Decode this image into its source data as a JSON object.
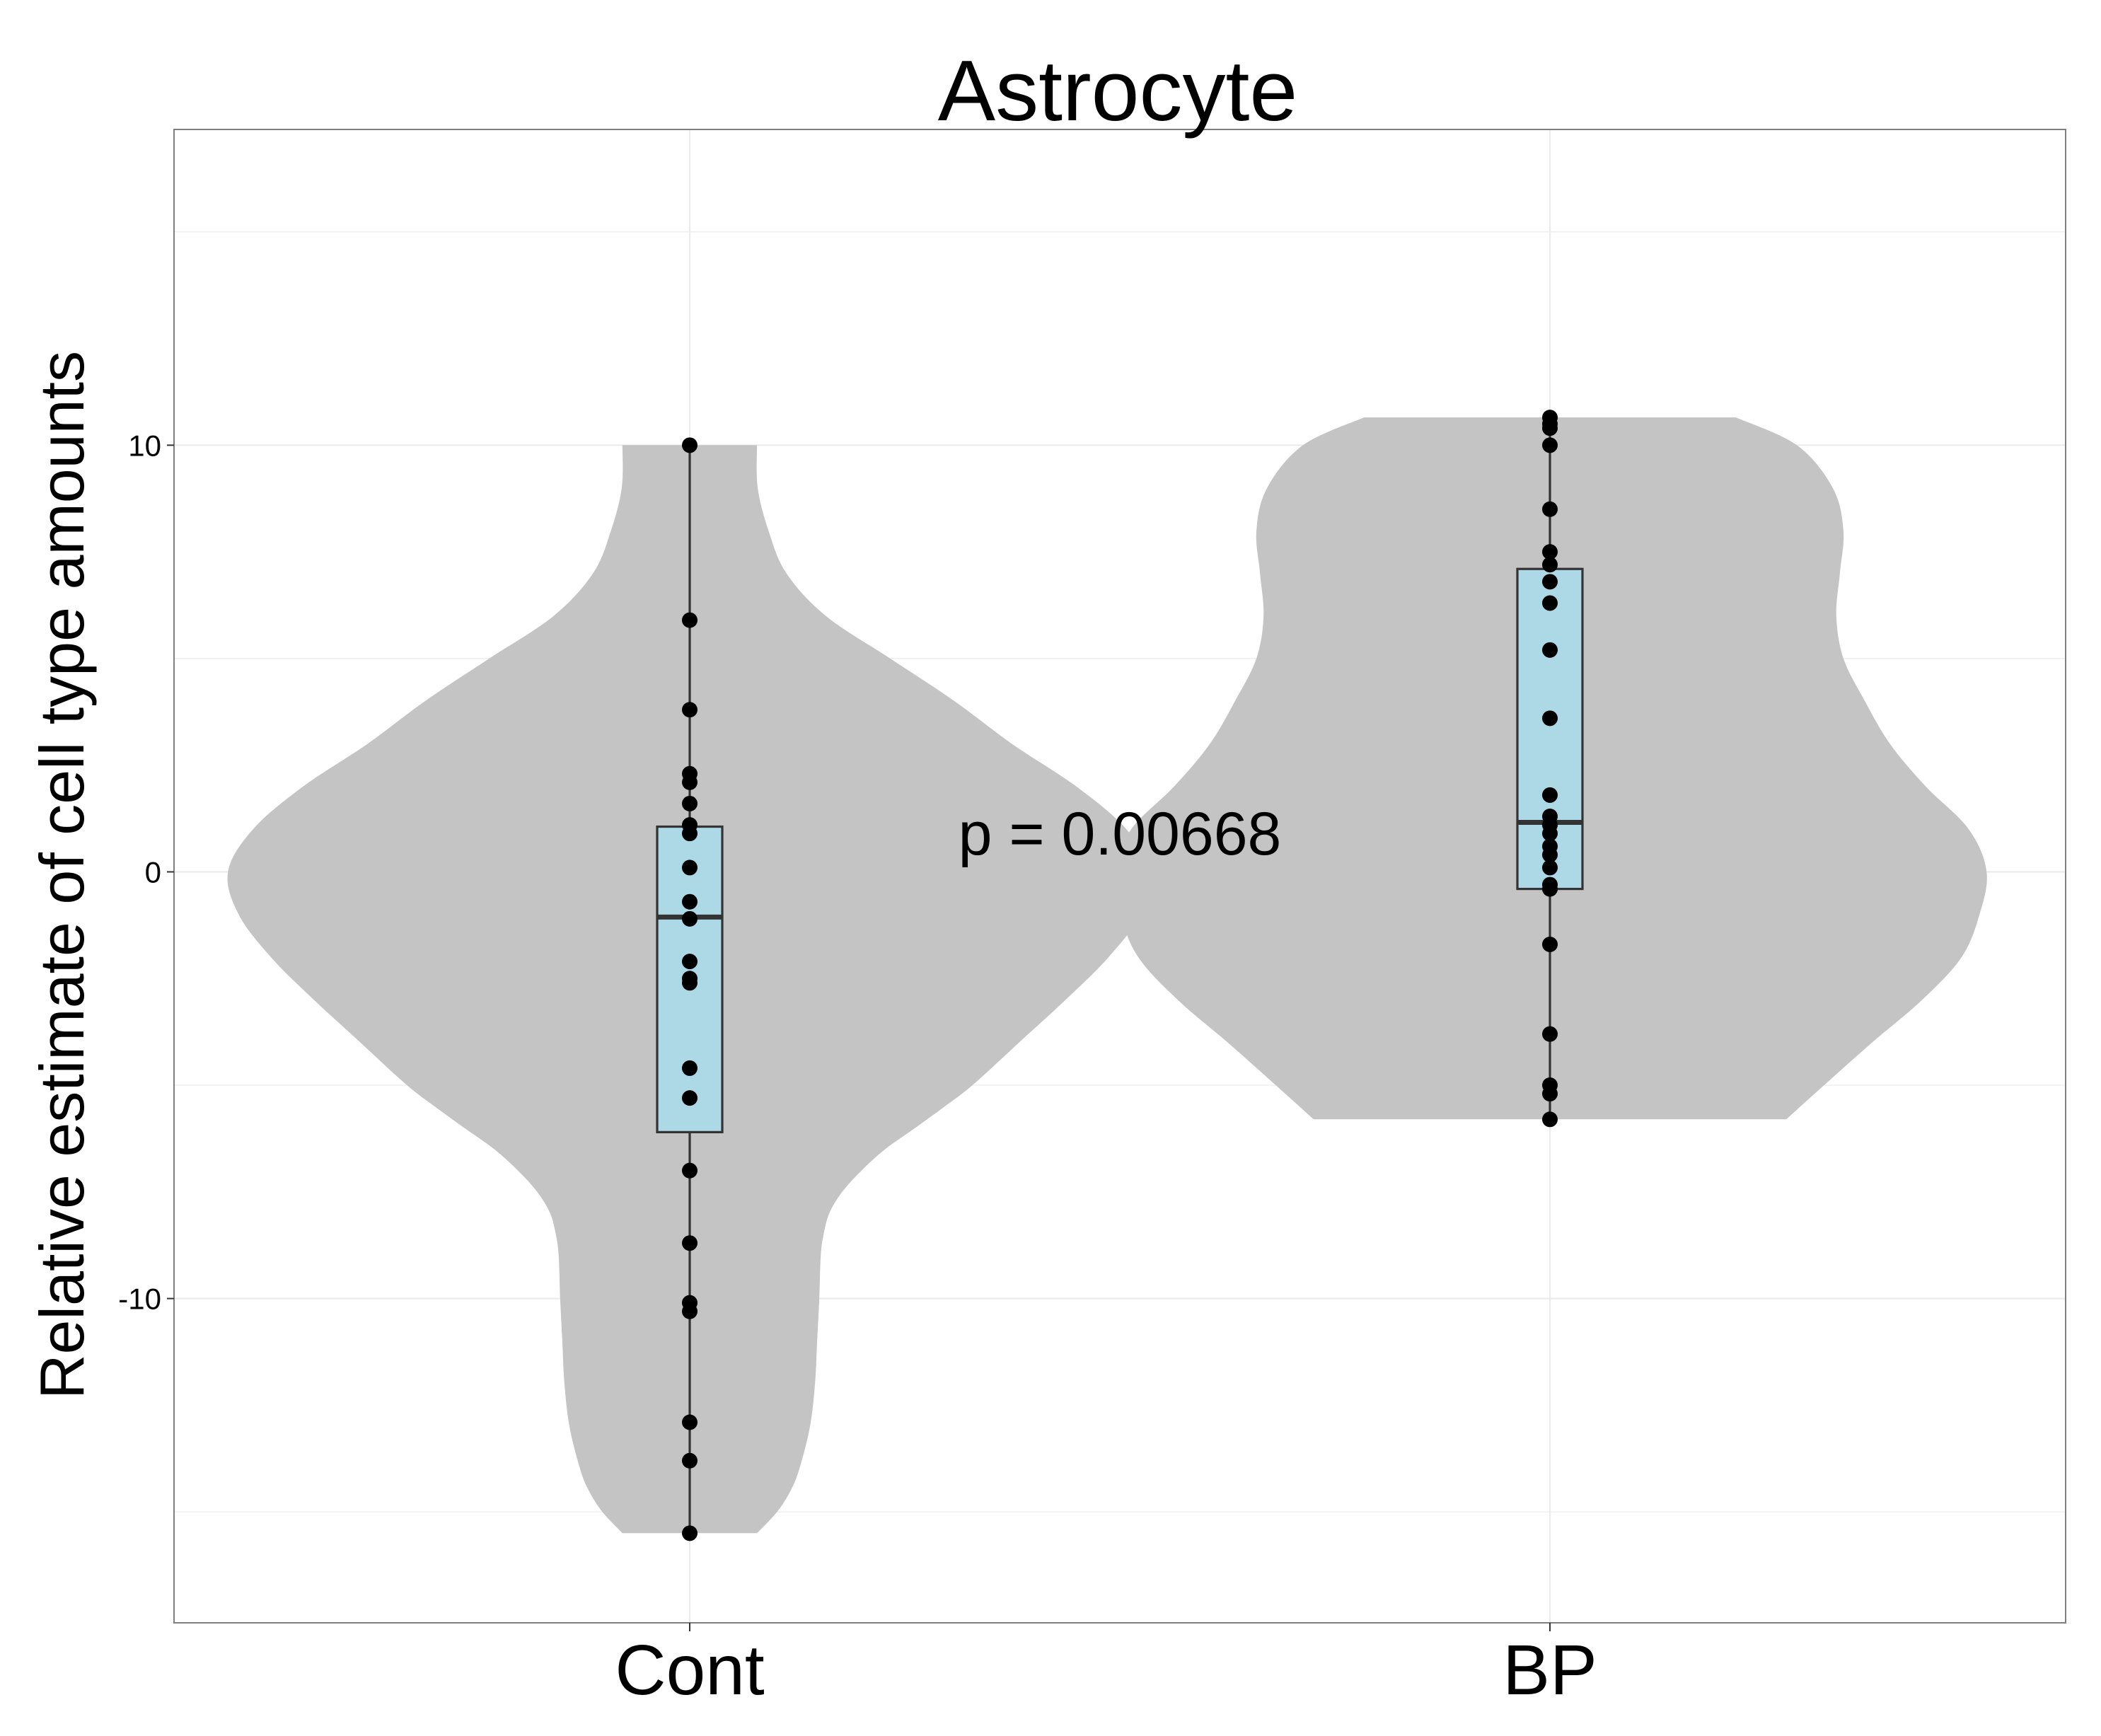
{
  "chart_data": {
    "type": "violin",
    "title": "Astrocyte",
    "xlabel": "",
    "ylabel": "Relative estimate of cell type amounts",
    "categories": [
      "Cont",
      "BP"
    ],
    "ylim": [
      -17.6,
      17.4
    ],
    "yticks": [
      {
        "value": 10,
        "label": "10"
      },
      {
        "value": 0,
        "label": "0"
      },
      {
        "value": -10,
        "label": "-10"
      }
    ],
    "grid": true,
    "annotation": {
      "text": "p = 0.00668",
      "x": 1.5,
      "y": 0.9
    },
    "colors": {
      "violin_fill": "#c4c4c4",
      "box_fill": "#add8e6",
      "box_stroke": "#333333",
      "point": "#000000",
      "grid": "#ebebeb",
      "panel_border": "#7f7f7f"
    },
    "violins": [
      {
        "category": "Cont",
        "profile": [
          [
            -15.5,
            0.094
          ],
          [
            -15.0,
            0.122
          ],
          [
            -14.5,
            0.141
          ],
          [
            -14.0,
            0.153
          ],
          [
            -13.0,
            0.168
          ],
          [
            -12.0,
            0.175
          ],
          [
            -11.0,
            0.178
          ],
          [
            -10.0,
            0.181
          ],
          [
            -9.0,
            0.183
          ],
          [
            -8.5,
            0.187
          ],
          [
            -8.0,
            0.195
          ],
          [
            -7.5,
            0.213
          ],
          [
            -7.0,
            0.24
          ],
          [
            -6.5,
            0.273
          ],
          [
            -6.0,
            0.315
          ],
          [
            -5.5,
            0.356
          ],
          [
            -5.0,
            0.395
          ],
          [
            -4.0,
            0.46
          ],
          [
            -3.0,
            0.525
          ],
          [
            -2.0,
            0.585
          ],
          [
            -1.0,
            0.63
          ],
          [
            0.0,
            0.645
          ],
          [
            1.0,
            0.61
          ],
          [
            2.0,
            0.54
          ],
          [
            3.0,
            0.45
          ],
          [
            4.0,
            0.37
          ],
          [
            5.0,
            0.28
          ],
          [
            6.0,
            0.19
          ],
          [
            7.0,
            0.135
          ],
          [
            8.0,
            0.11
          ],
          [
            9.0,
            0.095
          ],
          [
            10.0,
            0.094
          ]
        ],
        "box": {
          "q1": -6.1,
          "median": -1.06,
          "q3": 1.06,
          "whisker_low": -15.5,
          "whisker_high": 10.0
        },
        "points": [
          10.0,
          5.9,
          3.8,
          2.3,
          2.1,
          1.6,
          1.1,
          0.9,
          0.1,
          -0.7,
          -1.1,
          -2.1,
          -2.5,
          -2.6,
          -4.6,
          -5.3,
          -7.0,
          -8.7,
          -10.1,
          -10.3,
          -12.9,
          -13.8,
          -15.5
        ]
      },
      {
        "category": "BP",
        "profile": [
          [
            -5.8,
            0.33
          ],
          [
            -5.0,
            0.383
          ],
          [
            -4.0,
            0.45
          ],
          [
            -3.0,
            0.52
          ],
          [
            -2.0,
            0.575
          ],
          [
            -1.0,
            0.6
          ],
          [
            0.0,
            0.61
          ],
          [
            1.0,
            0.585
          ],
          [
            2.0,
            0.525
          ],
          [
            3.0,
            0.475
          ],
          [
            4.0,
            0.44
          ],
          [
            5.0,
            0.41
          ],
          [
            6.0,
            0.4
          ],
          [
            7.0,
            0.405
          ],
          [
            8.0,
            0.41
          ],
          [
            9.0,
            0.395
          ],
          [
            10.0,
            0.345
          ],
          [
            10.65,
            0.26
          ]
        ],
        "box": {
          "q1": -0.4,
          "median": 1.16,
          "q3": 7.1,
          "whisker_low": -5.8,
          "whisker_high": 10.65
        },
        "points": [
          10.65,
          10.5,
          10.4,
          10.0,
          8.5,
          7.5,
          7.2,
          6.8,
          6.3,
          5.2,
          3.6,
          1.8,
          1.3,
          1.1,
          0.9,
          0.6,
          0.4,
          0.1,
          -0.3,
          -0.4,
          -1.7,
          -3.8,
          -5.0,
          -5.2,
          -5.8
        ]
      }
    ]
  }
}
